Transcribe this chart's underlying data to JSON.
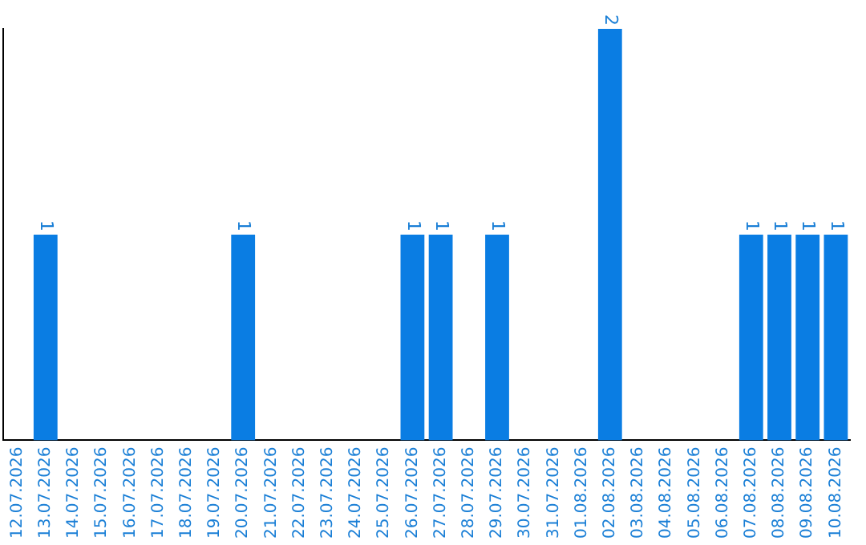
{
  "chart_data": {
    "type": "bar",
    "categories": [
      "12.07.2026",
      "13.07.2026",
      "14.07.2026",
      "15.07.2026",
      "16.07.2026",
      "17.07.2026",
      "18.07.2026",
      "19.07.2026",
      "20.07.2026",
      "21.07.2026",
      "22.07.2026",
      "23.07.2026",
      "24.07.2026",
      "25.07.2026",
      "26.07.2026",
      "27.07.2026",
      "28.07.2026",
      "29.07.2026",
      "30.07.2026",
      "31.07.2026",
      "01.08.2026",
      "02.08.2026",
      "03.08.2026",
      "04.08.2026",
      "05.08.2026",
      "06.08.2026",
      "07.08.2026",
      "08.08.2026",
      "09.08.2026",
      "10.08.2026"
    ],
    "values": [
      0,
      1,
      0,
      0,
      0,
      0,
      0,
      0,
      1,
      0,
      0,
      0,
      0,
      0,
      1,
      1,
      0,
      1,
      0,
      0,
      0,
      2,
      0,
      0,
      0,
      0,
      1,
      1,
      1,
      1
    ],
    "value_labels": [
      null,
      "1",
      null,
      null,
      null,
      null,
      null,
      null,
      "1",
      null,
      null,
      null,
      null,
      null,
      "1",
      "1",
      null,
      "1",
      null,
      null,
      null,
      "2",
      null,
      null,
      null,
      null,
      "1",
      "1",
      "1",
      "1"
    ],
    "color": "#0a7de3",
    "tick_labels": "x",
    "grid": false,
    "legend": false
  }
}
